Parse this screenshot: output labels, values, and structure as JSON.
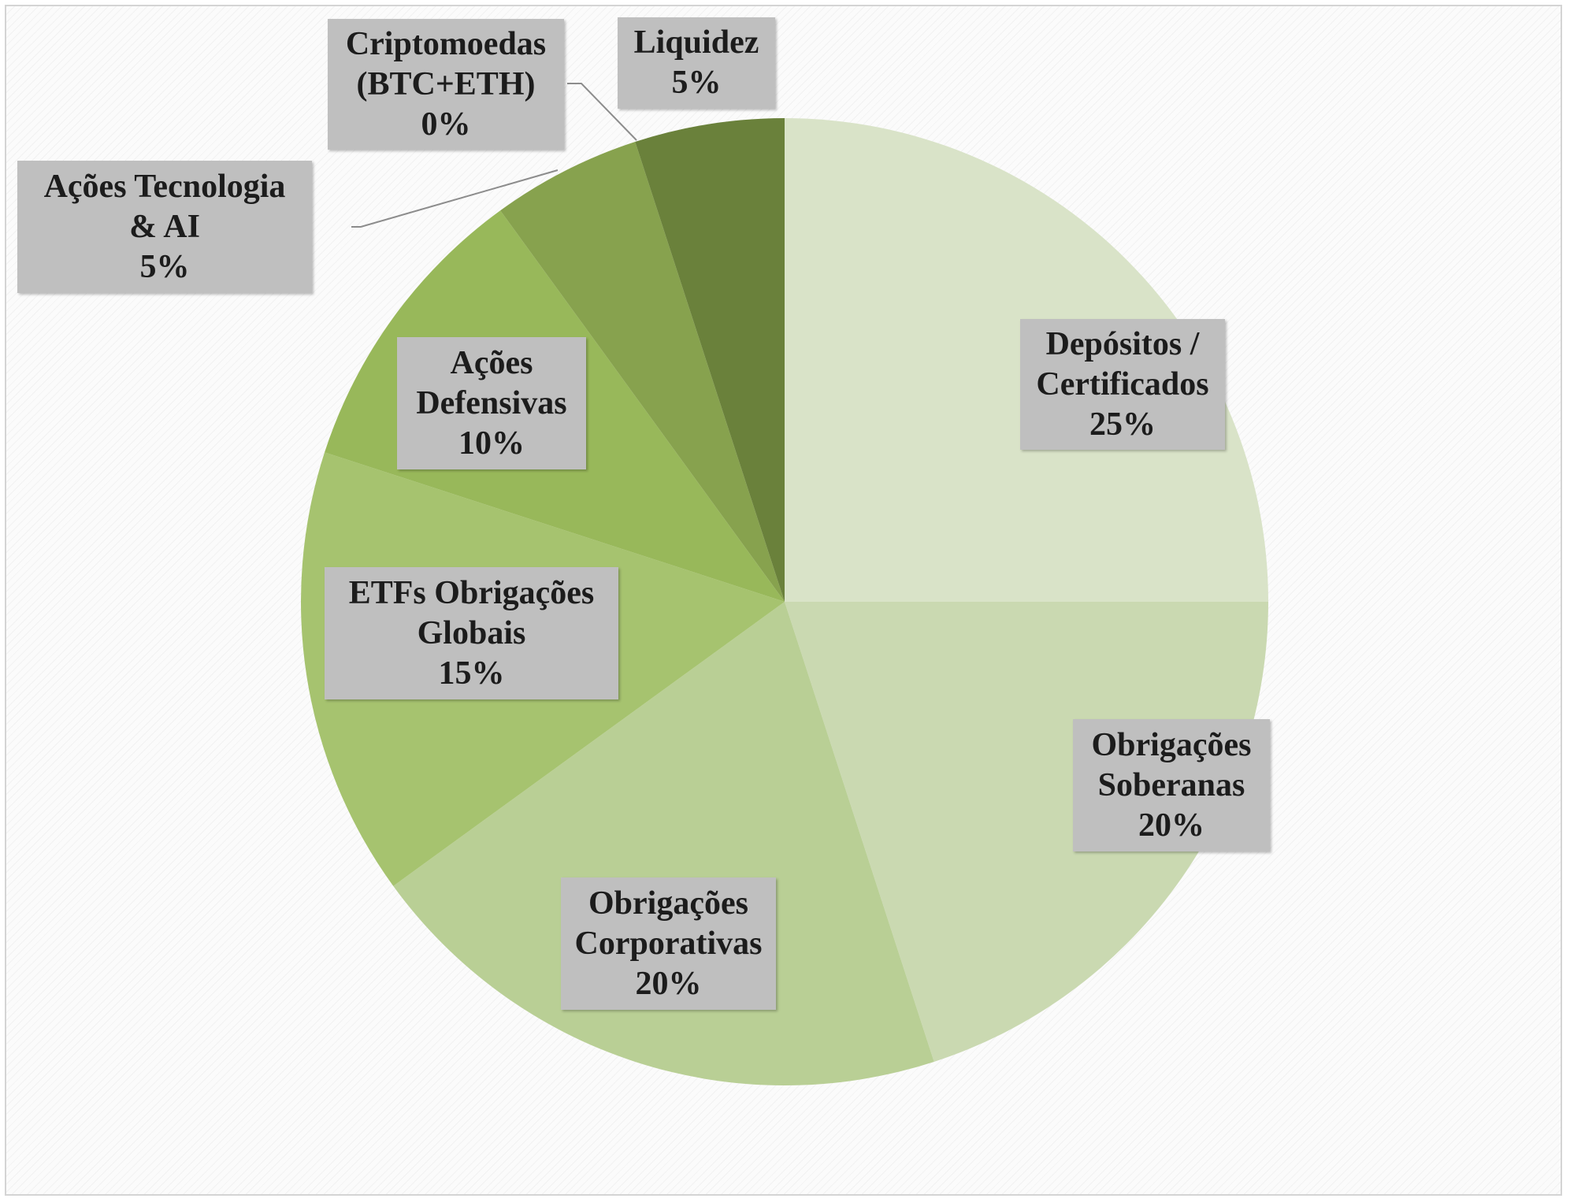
{
  "chart_data": {
    "type": "pie",
    "title": "",
    "slices": [
      {
        "label": "Depósitos / Certificados",
        "label_lines": [
          "Depósitos /",
          "Certificados"
        ],
        "value": 25,
        "value_label": "25%",
        "color": "#d9e3c8"
      },
      {
        "label": "Obrigações Soberanas",
        "label_lines": [
          "Obrigações",
          "Soberanas"
        ],
        "value": 20,
        "value_label": "20%",
        "color": "#cad9b1"
      },
      {
        "label": "Obrigações Corporativas",
        "label_lines": [
          "Obrigações",
          "Corporativas"
        ],
        "value": 20,
        "value_label": "20%",
        "color": "#b9cf95"
      },
      {
        "label": "ETFs Obrigações Globais",
        "label_lines": [
          "ETFs Obrigações",
          "Globais"
        ],
        "value": 15,
        "value_label": "15%",
        "color": "#a6c36f"
      },
      {
        "label": "Ações Defensivas",
        "label_lines": [
          "Ações",
          "Defensivas"
        ],
        "value": 10,
        "value_label": "10%",
        "color": "#98b85a"
      },
      {
        "label": "Ações Tecnologia & AI",
        "label_lines": [
          "Ações Tecnologia",
          "& AI"
        ],
        "value": 5,
        "value_label": "5%",
        "color": "#87a24e"
      },
      {
        "label": "Criptomoedas (BTC+ETH)",
        "label_lines": [
          "Criptomoedas",
          "(BTC+ETH)"
        ],
        "value": 0,
        "value_label": "0%",
        "color": "#7a9545"
      },
      {
        "label": "Liquidez",
        "label_lines": [
          "Liquidez"
        ],
        "value": 5,
        "value_label": "5%",
        "color": "#6a813b"
      }
    ],
    "legend": "none",
    "grid": false
  }
}
